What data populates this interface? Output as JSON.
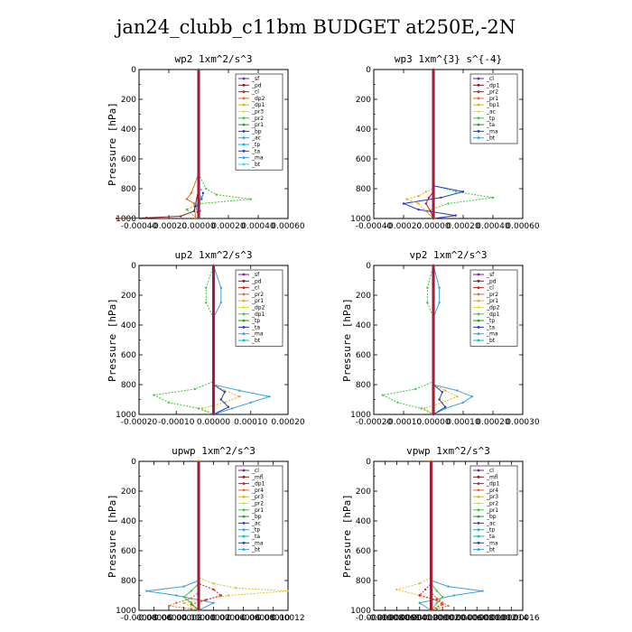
{
  "title": "jan24_clubb_c11bm  BUDGET at250E,-2N",
  "chart_data": [
    {
      "type": "line",
      "title": "wp2   1xm^2/s^3",
      "ylabel": "Pressure [hPa]",
      "ylim": [
        1000,
        0
      ],
      "xlim": [
        -0.0004,
        0.0006
      ],
      "xticks": [
        "-0.00040",
        "-0.00020",
        "0.00000",
        "0.00020",
        "0.00040",
        "0.00060"
      ],
      "yticks": [
        "0",
        "200",
        "400",
        "600",
        "800",
        "1000"
      ],
      "legend": [
        "_sf",
        "_pd",
        "_cl",
        "_dp2",
        "_dp1",
        "_pr3",
        "_pr2",
        "_pr1",
        "_bp",
        "_ac",
        "_tp",
        "_ta",
        "_ma",
        "_bt"
      ],
      "series": [
        {
          "color": "#7a1fa2",
          "x": [
            0,
            0,
            0,
            0,
            0,
            0
          ],
          "y": [
            0,
            200,
            400,
            600,
            800,
            1000
          ]
        },
        {
          "color": "#3cc83c",
          "x": [
            0,
            0,
            5e-05,
            0.00012,
            0.00035,
            1e-05,
            -8e-05,
            -1e-05
          ],
          "y": [
            0,
            700,
            800,
            840,
            870,
            900,
            940,
            1000
          ]
        },
        {
          "color": "#e07020",
          "x": [
            0,
            0,
            -5e-05,
            -8e-05,
            -3e-05,
            -2e-05
          ],
          "y": [
            0,
            700,
            830,
            870,
            900,
            1000
          ]
        },
        {
          "color": "#2a3ac8",
          "x": [
            0,
            0,
            3e-05,
            2e-05,
            -2e-05,
            0
          ],
          "y": [
            0,
            780,
            830,
            870,
            920,
            1000
          ]
        },
        {
          "color": "#8b1a1a",
          "x": [
            0,
            0,
            -2e-05,
            -3e-05,
            -0.00012,
            -0.00035,
            -0.00055
          ],
          "y": [
            0,
            800,
            900,
            950,
            985,
            995,
            1000
          ]
        },
        {
          "color": "#2fa0d0",
          "x": [
            0,
            0,
            2e-05,
            -2e-05,
            1e-05,
            0
          ],
          "y": [
            0,
            820,
            860,
            900,
            950,
            1000
          ]
        }
      ]
    },
    {
      "type": "line",
      "title": "wp3   1xm^{3} s^{-4}",
      "ylabel": "",
      "ylim": [
        1000,
        0
      ],
      "xlim": [
        -0.0004,
        0.0006
      ],
      "xticks": [
        "-0.00040",
        "-0.00020",
        "0.00000",
        "0.00020",
        "0.00040",
        "0.00060"
      ],
      "yticks": [
        "0",
        "200",
        "400",
        "600",
        "800",
        "1000"
      ],
      "legend": [
        "_cl",
        "_dp1",
        "_pr2",
        "_pr1",
        "_bp1",
        "_ac",
        "_tp",
        "_ta",
        "_ma",
        "_bt"
      ],
      "series": [
        {
          "color": "#7a1fa2",
          "x": [
            0,
            0,
            0,
            0,
            0,
            0
          ],
          "y": [
            0,
            200,
            400,
            600,
            800,
            1000
          ]
        },
        {
          "color": "#3cc83c",
          "x": [
            0,
            0,
            0.00015,
            0.0004,
            0.0001,
            -5e-05,
            0
          ],
          "y": [
            0,
            780,
            820,
            860,
            900,
            950,
            1000
          ]
        },
        {
          "color": "#2a3ac8",
          "x": [
            0,
            0,
            0.0002,
            5e-05,
            -0.0002,
            -0.0001,
            0.00015,
            0
          ],
          "y": [
            0,
            780,
            820,
            860,
            900,
            940,
            980,
            1000
          ]
        },
        {
          "color": "#e0b020",
          "x": [
            0,
            0,
            -5e-05,
            -0.0001,
            -0.00018,
            -0.0001,
            0
          ],
          "y": [
            0,
            800,
            820,
            850,
            870,
            900,
            1000
          ]
        },
        {
          "color": "#d02020",
          "x": [
            0,
            0,
            -3e-05,
            -5e-05,
            -2e-05,
            0
          ],
          "y": [
            0,
            820,
            860,
            900,
            950,
            1000
          ]
        }
      ]
    },
    {
      "type": "line",
      "title": "up2   1xm^2/s^3",
      "ylabel": "Pressure [hPa]",
      "ylim": [
        1000,
        0
      ],
      "xlim": [
        -0.0002,
        0.0002
      ],
      "xticks": [
        "-0.00020",
        "-0.00010",
        "0.00000",
        "0.00010",
        "0.00020"
      ],
      "yticks": [
        "0",
        "200",
        "400",
        "600",
        "800",
        "1000"
      ],
      "legend": [
        "_sf",
        "_pd",
        "_cl",
        "_pr2",
        "_pr1",
        "_dp2",
        "_dp1",
        "_tp",
        "_ta",
        "_ma",
        "_bt"
      ],
      "series": [
        {
          "color": "#7a1fa2",
          "x": [
            0,
            0,
            0,
            0,
            0
          ],
          "y": [
            0,
            250,
            500,
            750,
            1000
          ]
        },
        {
          "color": "#3cc83c",
          "x": [
            0,
            -2e-05,
            -2e-05,
            0,
            0,
            -5e-05,
            -0.00016,
            -0.00012,
            -4e-05,
            0
          ],
          "y": [
            0,
            150,
            250,
            350,
            780,
            830,
            870,
            920,
            960,
            1000
          ]
        },
        {
          "color": "#3ca0e0",
          "x": [
            0,
            2e-05,
            2e-05,
            0,
            0,
            7e-05,
            0.00015,
            0.0001,
            5e-05,
            0
          ],
          "y": [
            0,
            150,
            250,
            350,
            800,
            840,
            880,
            920,
            960,
            1000
          ]
        },
        {
          "color": "#e0b020",
          "x": [
            0,
            0,
            3e-05,
            7e-05,
            3e-05,
            -3e-05,
            0
          ],
          "y": [
            0,
            800,
            840,
            880,
            920,
            960,
            1000
          ]
        },
        {
          "color": "#2a3ac8",
          "x": [
            0,
            0,
            3e-05,
            2e-05,
            4e-05,
            0
          ],
          "y": [
            0,
            800,
            850,
            900,
            950,
            1000
          ]
        },
        {
          "color": "#d02020",
          "x": [
            0,
            0,
            0,
            0,
            0
          ],
          "y": [
            0,
            250,
            500,
            750,
            1000
          ]
        }
      ]
    },
    {
      "type": "line",
      "title": "vp2   1xm^2/s^3",
      "ylabel": "Pressure [hPa]",
      "ylim": [
        1000,
        0
      ],
      "xlim": [
        -0.0002,
        0.0003
      ],
      "xticks": [
        "-0.00020",
        "-0.00010",
        "0.00000",
        "0.00010",
        "0.00020",
        "0.00030"
      ],
      "yticks": [
        "0",
        "200",
        "400",
        "600",
        "800",
        "1000"
      ],
      "legend": [
        "_sf",
        "_pd",
        "_cl",
        "_pr2",
        "_pr1",
        "_dp2",
        "_dp1",
        "_tp",
        "_ta",
        "_ma",
        "_bt"
      ],
      "series": [
        {
          "color": "#7a1fa2",
          "x": [
            0,
            0,
            0,
            0,
            0
          ],
          "y": [
            0,
            250,
            500,
            750,
            1000
          ]
        },
        {
          "color": "#3cc83c",
          "x": [
            0,
            -2e-05,
            -2e-05,
            0,
            0,
            -6e-05,
            -0.00017,
            -0.00012,
            -4e-05,
            0
          ],
          "y": [
            0,
            150,
            250,
            350,
            780,
            830,
            870,
            920,
            960,
            1000
          ]
        },
        {
          "color": "#3ca0e0",
          "x": [
            0,
            2e-05,
            2e-05,
            0,
            0,
            8e-05,
            0.00013,
            0.0001,
            4e-05,
            0
          ],
          "y": [
            0,
            150,
            250,
            350,
            800,
            840,
            880,
            920,
            960,
            1000
          ]
        },
        {
          "color": "#e0b020",
          "x": [
            0,
            0,
            4e-05,
            8e-05,
            3e-05,
            -3e-05,
            0
          ],
          "y": [
            0,
            800,
            840,
            880,
            920,
            960,
            1000
          ]
        },
        {
          "color": "#2a3ac8",
          "x": [
            0,
            0,
            3e-05,
            2e-05,
            4e-05,
            0
          ],
          "y": [
            0,
            800,
            850,
            900,
            950,
            1000
          ]
        },
        {
          "color": "#d02020",
          "x": [
            0,
            0,
            0,
            0,
            0
          ],
          "y": [
            0,
            250,
            500,
            750,
            1000
          ]
        }
      ]
    },
    {
      "type": "line",
      "title": "upwp   1xm^2/s^3",
      "ylabel": "Pressure [hPa]",
      "ylim": [
        1000,
        0
      ],
      "xlim": [
        -8e-05,
        0.00012
      ],
      "xticks": [
        "-0.00008",
        "-0.00006",
        "-0.00004",
        "-0.00002",
        "0.00000",
        "0.00002",
        "0.00004",
        "0.00006",
        "0.00008",
        "0.00010",
        "0.00012"
      ],
      "yticks": [
        "0",
        "200",
        "400",
        "600",
        "800",
        "1000"
      ],
      "legend": [
        "_cl",
        "_mfl",
        "_dp1",
        "_pr4",
        "_pr3",
        "_pr2",
        "_pr1",
        "_bp",
        "_ac",
        "_tp",
        "_ta",
        "_ma",
        "_bt"
      ],
      "series": [
        {
          "color": "#7a1fa2",
          "x": [
            0,
            0,
            0,
            0,
            0
          ],
          "y": [
            0,
            250,
            500,
            750,
            1000
          ]
        },
        {
          "color": "#e0c020",
          "x": [
            0,
            0,
            2e-05,
            5e-05,
            0.00012,
            4e-05,
            -2e-05,
            0
          ],
          "y": [
            0,
            780,
            820,
            850,
            870,
            900,
            950,
            1000
          ]
        },
        {
          "color": "#3ca0e0",
          "x": [
            0,
            0,
            -2e-05,
            -7e-05,
            -3e-05,
            2e-05,
            0
          ],
          "y": [
            0,
            800,
            840,
            870,
            900,
            950,
            1000
          ]
        },
        {
          "color": "#d02020",
          "x": [
            0,
            0,
            2e-05,
            3e-05,
            1e-05,
            -1e-05,
            0
          ],
          "y": [
            0,
            820,
            860,
            900,
            930,
            960,
            1000
          ]
        },
        {
          "color": "#3cc83c",
          "x": [
            0,
            0,
            -1e-05,
            -2e-05,
            -1e-05,
            0
          ],
          "y": [
            0,
            820,
            870,
            910,
            950,
            1000
          ]
        },
        {
          "color": "#e07020",
          "x": [
            0,
            0,
            -1e-05,
            -3e-05,
            -4e-05,
            -1e-05,
            0
          ],
          "y": [
            0,
            880,
            920,
            950,
            970,
            990,
            1000
          ]
        }
      ]
    },
    {
      "type": "line",
      "title": "vpwp   1xm^2/s^3",
      "ylabel": "Pressure [hPa]",
      "ylim": [
        1000,
        0
      ],
      "xlim": [
        -0.0001,
        0.00016
      ],
      "xticks": [
        "-0.00010",
        "-0.00008",
        "-0.00006",
        "-0.00004",
        "-0.00002",
        "0.00000",
        "0.00002",
        "0.00004",
        "0.00006",
        "0.00008",
        "0.00010",
        "0.00012",
        "0.00014",
        "0.00016"
      ],
      "yticks": [
        "0",
        "200",
        "400",
        "600",
        "800",
        "1000"
      ],
      "legend": [
        "_cl",
        "_mfl",
        "_dp1",
        "_pr4",
        "_pr3",
        "_pr2",
        "_pr1",
        "_bp",
        "_ac",
        "_tp",
        "_ta",
        "_ma",
        "_bt"
      ],
      "series": [
        {
          "color": "#7a1fa2",
          "x": [
            0,
            0,
            0,
            0,
            0
          ],
          "y": [
            0,
            250,
            500,
            750,
            1000
          ]
        },
        {
          "color": "#e0c020",
          "x": [
            0,
            0,
            -2e-05,
            -6e-05,
            -2e-05,
            2e-05,
            0
          ],
          "y": [
            0,
            780,
            820,
            860,
            900,
            950,
            1000
          ]
        },
        {
          "color": "#3ca0e0",
          "x": [
            0,
            0,
            3e-05,
            9e-05,
            4e-05,
            -2e-05,
            0
          ],
          "y": [
            0,
            800,
            840,
            870,
            900,
            950,
            1000
          ]
        },
        {
          "color": "#d02020",
          "x": [
            0,
            0,
            -1e-05,
            -2e-05,
            1e-05,
            2e-05,
            0
          ],
          "y": [
            0,
            820,
            860,
            900,
            930,
            960,
            1000
          ]
        },
        {
          "color": "#3cc83c",
          "x": [
            0,
            0,
            1e-05,
            2e-05,
            1e-05,
            0
          ],
          "y": [
            0,
            820,
            870,
            910,
            950,
            1000
          ]
        },
        {
          "color": "#e07020",
          "x": [
            0,
            0,
            1e-05,
            2e-05,
            3e-05,
            1e-05,
            0
          ],
          "y": [
            0,
            880,
            920,
            950,
            970,
            990,
            1000
          ]
        }
      ]
    }
  ]
}
